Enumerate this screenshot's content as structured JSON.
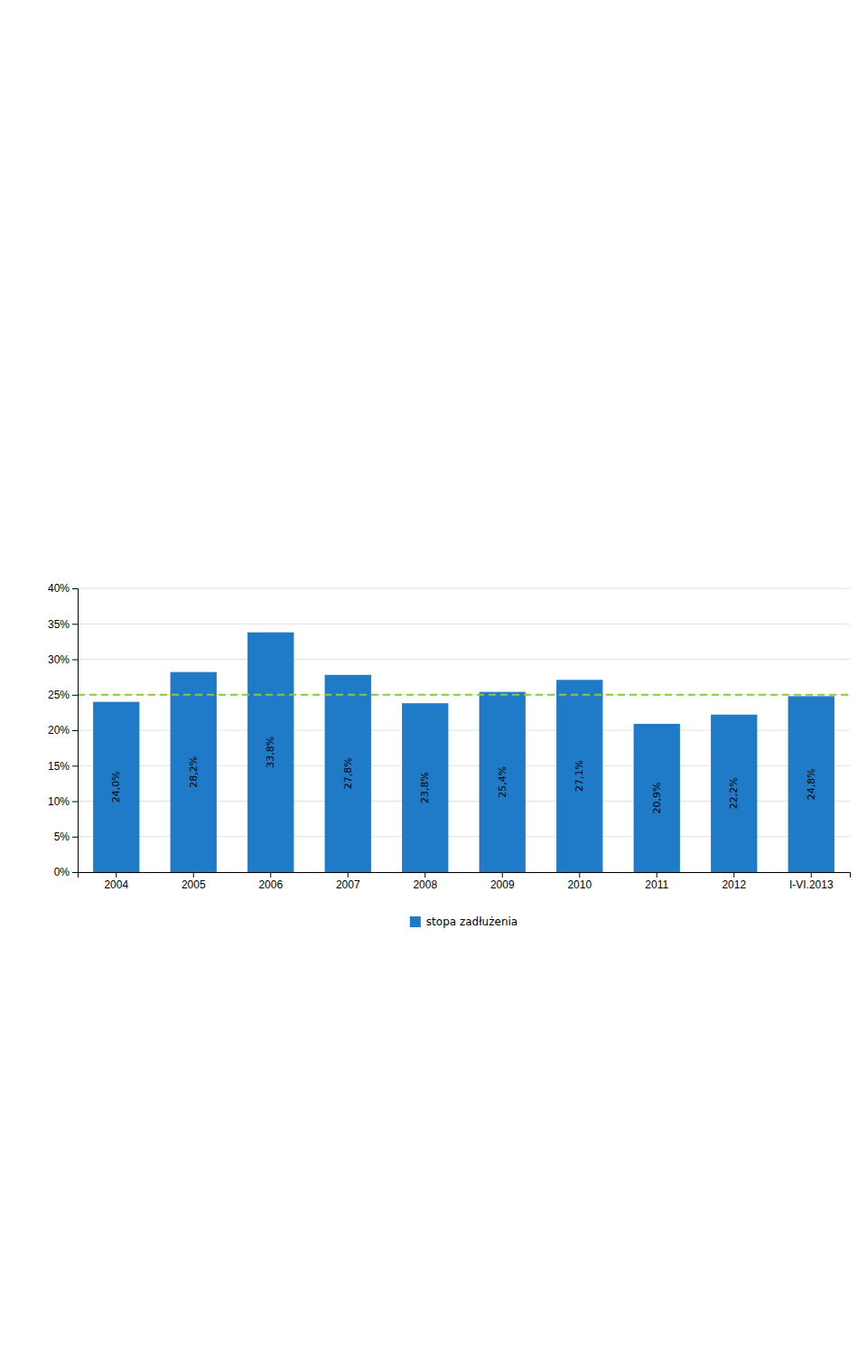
{
  "chart_data": {
    "type": "bar",
    "categories": [
      "2004",
      "2005",
      "2006",
      "2007",
      "2008",
      "2009",
      "2010",
      "2011",
      "2012",
      "I-VI.2013"
    ],
    "series": [
      {
        "name": "stopa zadłużenia",
        "color": "#1F7BC8",
        "values": [
          24.0,
          28.2,
          33.8,
          27.8,
          23.8,
          25.4,
          27.1,
          20.9,
          22.2,
          24.8
        ],
        "value_labels": [
          "24,0%",
          "28,2%",
          "33,8%",
          "27,8%",
          "23,8%",
          "25,4%",
          "27,1%",
          "20,9%",
          "22,2%",
          "24,8%"
        ]
      }
    ],
    "data_labels": true,
    "hlines": [
      {
        "value": 25.0,
        "color": "#8DC63F",
        "line_style": "dashed"
      }
    ],
    "ylim": [
      0,
      40
    ],
    "yticks": [
      {
        "value": 0,
        "label": "0%"
      },
      {
        "value": 5,
        "label": "5%"
      },
      {
        "value": 10,
        "label": "10%"
      },
      {
        "value": 15,
        "label": "15%"
      },
      {
        "value": 20,
        "label": "20%"
      },
      {
        "value": 25,
        "label": "25%"
      },
      {
        "value": 30,
        "label": "30%"
      },
      {
        "value": 35,
        "label": "35%"
      },
      {
        "value": 40,
        "label": "40%"
      }
    ],
    "grid": true,
    "legend": "bottom"
  }
}
